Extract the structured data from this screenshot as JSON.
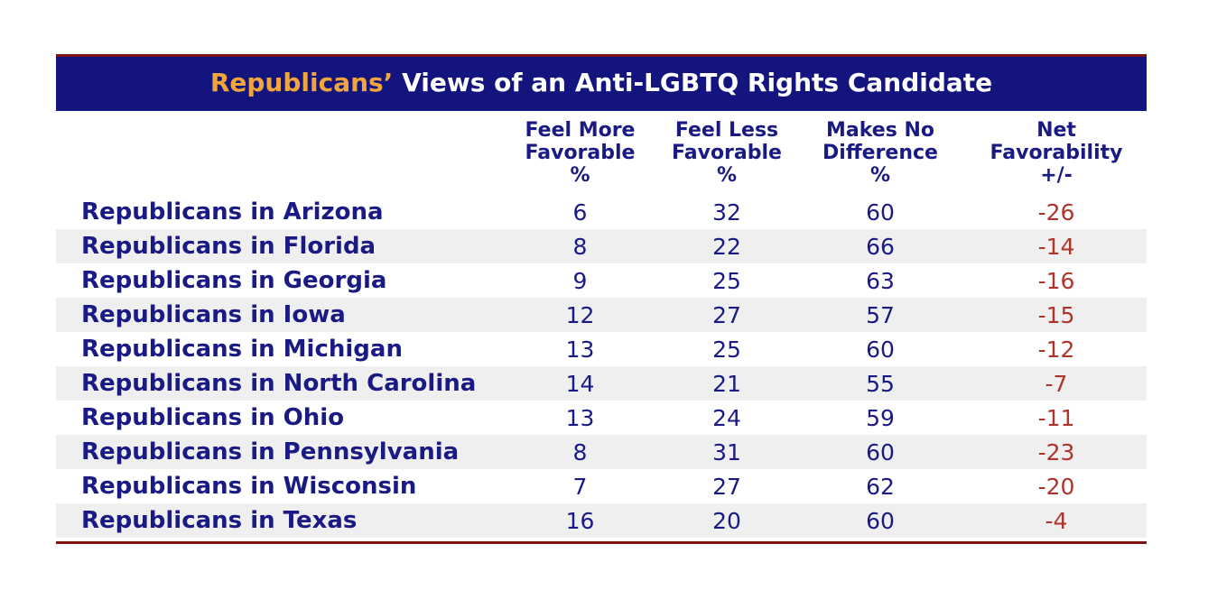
{
  "title": {
    "highlight": "Republicans’",
    "rest": " Views of an Anti-LGBTQ Rights Candidate"
  },
  "columns": [
    {
      "lines": [
        "Feel More",
        "Favorable",
        "%"
      ]
    },
    {
      "lines": [
        "Feel Less",
        "Favorable",
        "%"
      ]
    },
    {
      "lines": [
        "Makes No",
        "Difference",
        "%"
      ]
    },
    {
      "lines": [
        "Net",
        "Favorability",
        "+/-"
      ]
    }
  ],
  "rows": [
    {
      "label": "Republicans in Arizona",
      "more": "6",
      "less": "32",
      "none": "60",
      "net": "-26"
    },
    {
      "label": "Republicans in Florida",
      "more": "8",
      "less": "22",
      "none": "66",
      "net": "-14"
    },
    {
      "label": "Republicans in Georgia",
      "more": "9",
      "less": "25",
      "none": "63",
      "net": "-16"
    },
    {
      "label": "Republicans in Iowa",
      "more": "12",
      "less": "27",
      "none": "57",
      "net": "-15"
    },
    {
      "label": "Republicans in Michigan",
      "more": "13",
      "less": "25",
      "none": "60",
      "net": "-12"
    },
    {
      "label": "Republicans in North Carolina",
      "more": "14",
      "less": "21",
      "none": "55",
      "net": "-7"
    },
    {
      "label": "Republicans in Ohio",
      "more": "13",
      "less": "24",
      "none": "59",
      "net": "-11"
    },
    {
      "label": "Republicans in Pennsylvania",
      "more": "8",
      "less": "31",
      "none": "60",
      "net": "-23"
    },
    {
      "label": "Republicans in Wisconsin",
      "more": "7",
      "less": "27",
      "none": "62",
      "net": "-20"
    },
    {
      "label": "Republicans in Texas",
      "more": "16",
      "less": "20",
      "none": "60",
      "net": "-4"
    }
  ],
  "colors": {
    "navy": "#14147E",
    "ink": "#1A1A85",
    "gold": "#F0A63C",
    "red": "#B0342B",
    "maroon": "#7B1512",
    "stripe": "#EFEFEF"
  },
  "chart_data": {
    "type": "table",
    "title": "Republicans’ Views of an Anti-LGBTQ Rights Candidate",
    "columns": [
      "Feel More Favorable %",
      "Feel Less Favorable %",
      "Makes No Difference %",
      "Net Favorability +/-"
    ],
    "rows": [
      {
        "group": "Republicans in Arizona",
        "feel_more_favorable": 6,
        "feel_less_favorable": 32,
        "makes_no_difference": 60,
        "net_favorability": -26
      },
      {
        "group": "Republicans in Florida",
        "feel_more_favorable": 8,
        "feel_less_favorable": 22,
        "makes_no_difference": 66,
        "net_favorability": -14
      },
      {
        "group": "Republicans in Georgia",
        "feel_more_favorable": 9,
        "feel_less_favorable": 25,
        "makes_no_difference": 63,
        "net_favorability": -16
      },
      {
        "group": "Republicans in Iowa",
        "feel_more_favorable": 12,
        "feel_less_favorable": 27,
        "makes_no_difference": 57,
        "net_favorability": -15
      },
      {
        "group": "Republicans in Michigan",
        "feel_more_favorable": 13,
        "feel_less_favorable": 25,
        "makes_no_difference": 60,
        "net_favorability": -12
      },
      {
        "group": "Republicans in North Carolina",
        "feel_more_favorable": 14,
        "feel_less_favorable": 21,
        "makes_no_difference": 55,
        "net_favorability": -7
      },
      {
        "group": "Republicans in Ohio",
        "feel_more_favorable": 13,
        "feel_less_favorable": 24,
        "makes_no_difference": 59,
        "net_favorability": -11
      },
      {
        "group": "Republicans in Pennsylvania",
        "feel_more_favorable": 8,
        "feel_less_favorable": 31,
        "makes_no_difference": 60,
        "net_favorability": -23
      },
      {
        "group": "Republicans in Wisconsin",
        "feel_more_favorable": 7,
        "feel_less_favorable": 27,
        "makes_no_difference": 62,
        "net_favorability": -20
      },
      {
        "group": "Republicans in Texas",
        "feel_more_favorable": 16,
        "feel_less_favorable": 20,
        "makes_no_difference": 60,
        "net_favorability": -4
      }
    ]
  }
}
